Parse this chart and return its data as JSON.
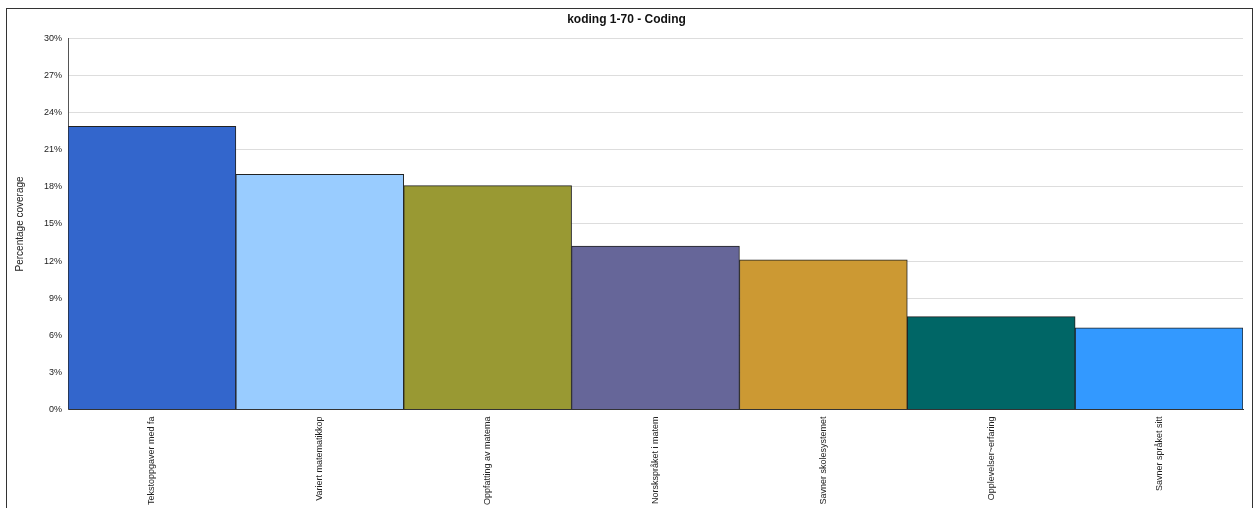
{
  "chart_data": {
    "type": "bar",
    "title": "koding 1-70 - Coding",
    "ylabel": "Percentage coverage",
    "categories": [
      "Tekstoppgaver med fa",
      "Variert matematikkop",
      "Oppfatting av matema",
      "Norskspråket i matem",
      "Savner skolesystemet",
      "Opplevelser~erfaring",
      "Savner språket sitt"
    ],
    "values": [
      22.9,
      19.0,
      18.1,
      13.2,
      12.1,
      7.5,
      6.6
    ],
    "colors": [
      "#3366cc",
      "#99ccff",
      "#999933",
      "#666699",
      "#cc9933",
      "#006666",
      "#3399ff"
    ],
    "ylim": [
      0,
      30
    ],
    "yticks": [
      {
        "value": 0,
        "label": "0%"
      },
      {
        "value": 3,
        "label": "3%"
      },
      {
        "value": 6,
        "label": "6%"
      },
      {
        "value": 9,
        "label": "9%"
      },
      {
        "value": 12,
        "label": "12%"
      },
      {
        "value": 15,
        "label": "15%"
      },
      {
        "value": 18,
        "label": "18%"
      },
      {
        "value": 21,
        "label": "21%"
      },
      {
        "value": 24,
        "label": "24%"
      },
      {
        "value": 27,
        "label": "27%"
      },
      {
        "value": 30,
        "label": "30%"
      }
    ],
    "grid": "y",
    "legend": false
  }
}
